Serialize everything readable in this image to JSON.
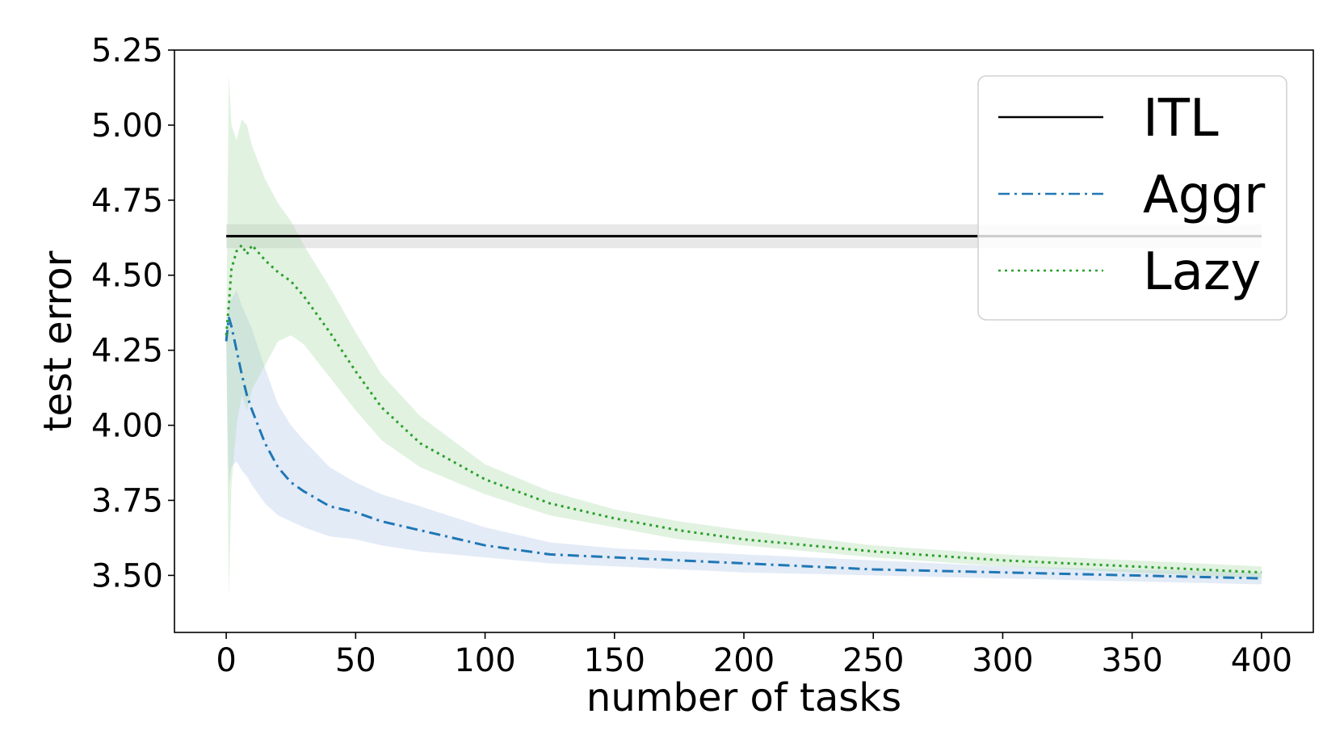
{
  "chart_data": {
    "type": "line",
    "xlabel": "number of tasks",
    "ylabel": "test error",
    "xlim": [
      -20,
      420
    ],
    "ylim": [
      3.31,
      5.25
    ],
    "xticks": [
      "0",
      "50",
      "100",
      "150",
      "200",
      "250",
      "300",
      "350",
      "400"
    ],
    "yticks": [
      "3.50",
      "3.75",
      "4.00",
      "4.25",
      "4.50",
      "4.75",
      "5.00",
      "5.25"
    ],
    "grid": false,
    "legend_position": "top-right",
    "series": [
      {
        "name": "ITL",
        "style": "solid",
        "color": "#000000",
        "band_color": "#bdbdbd",
        "x": [
          0,
          400
        ],
        "y": [
          4.63,
          4.63
        ],
        "lower": [
          4.59,
          4.59
        ],
        "upper": [
          4.67,
          4.67
        ]
      },
      {
        "name": "Aggr",
        "style": "dashdot",
        "color": "#1f77b4",
        "band_color": "#aec7e8",
        "x": [
          0,
          1,
          2,
          4,
          6,
          8,
          10,
          15,
          20,
          25,
          30,
          40,
          50,
          60,
          75,
          100,
          125,
          150,
          175,
          200,
          250,
          300,
          350,
          400
        ],
        "y": [
          4.28,
          4.36,
          4.33,
          4.25,
          4.17,
          4.1,
          4.05,
          3.94,
          3.86,
          3.81,
          3.78,
          3.73,
          3.71,
          3.68,
          3.65,
          3.6,
          3.57,
          3.56,
          3.55,
          3.54,
          3.52,
          3.51,
          3.5,
          3.49
        ],
        "lower": [
          4.28,
          3.8,
          3.86,
          3.88,
          3.85,
          3.83,
          3.8,
          3.74,
          3.7,
          3.68,
          3.66,
          3.63,
          3.62,
          3.6,
          3.58,
          3.56,
          3.54,
          3.53,
          3.52,
          3.51,
          3.5,
          3.49,
          3.48,
          3.47
        ],
        "upper": [
          4.28,
          4.4,
          4.42,
          4.45,
          4.4,
          4.36,
          4.32,
          4.19,
          4.07,
          4.0,
          3.95,
          3.86,
          3.81,
          3.77,
          3.73,
          3.66,
          3.61,
          3.59,
          3.58,
          3.57,
          3.55,
          3.53,
          3.52,
          3.51
        ]
      },
      {
        "name": "Lazy",
        "style": "dotted",
        "color": "#2ca02c",
        "band_color": "#a9dba9",
        "x": [
          0,
          1,
          2,
          4,
          6,
          8,
          10,
          15,
          20,
          25,
          30,
          40,
          50,
          60,
          75,
          100,
          125,
          150,
          175,
          200,
          250,
          300,
          350,
          400
        ],
        "y": [
          4.3,
          4.4,
          4.52,
          4.58,
          4.6,
          4.57,
          4.6,
          4.55,
          4.51,
          4.48,
          4.43,
          4.31,
          4.18,
          4.06,
          3.94,
          3.82,
          3.74,
          3.69,
          3.65,
          3.62,
          3.58,
          3.55,
          3.53,
          3.51
        ],
        "lower": [
          4.3,
          3.42,
          3.8,
          4.0,
          4.1,
          4.05,
          4.12,
          4.2,
          4.28,
          4.3,
          4.27,
          4.16,
          4.05,
          3.95,
          3.86,
          3.77,
          3.7,
          3.66,
          3.62,
          3.6,
          3.56,
          3.53,
          3.51,
          3.49
        ],
        "upper": [
          4.3,
          5.17,
          5.0,
          4.95,
          5.02,
          5.0,
          4.93,
          4.82,
          4.74,
          4.68,
          4.6,
          4.46,
          4.31,
          4.17,
          4.03,
          3.87,
          3.78,
          3.72,
          3.68,
          3.65,
          3.6,
          3.57,
          3.55,
          3.53
        ]
      }
    ]
  }
}
